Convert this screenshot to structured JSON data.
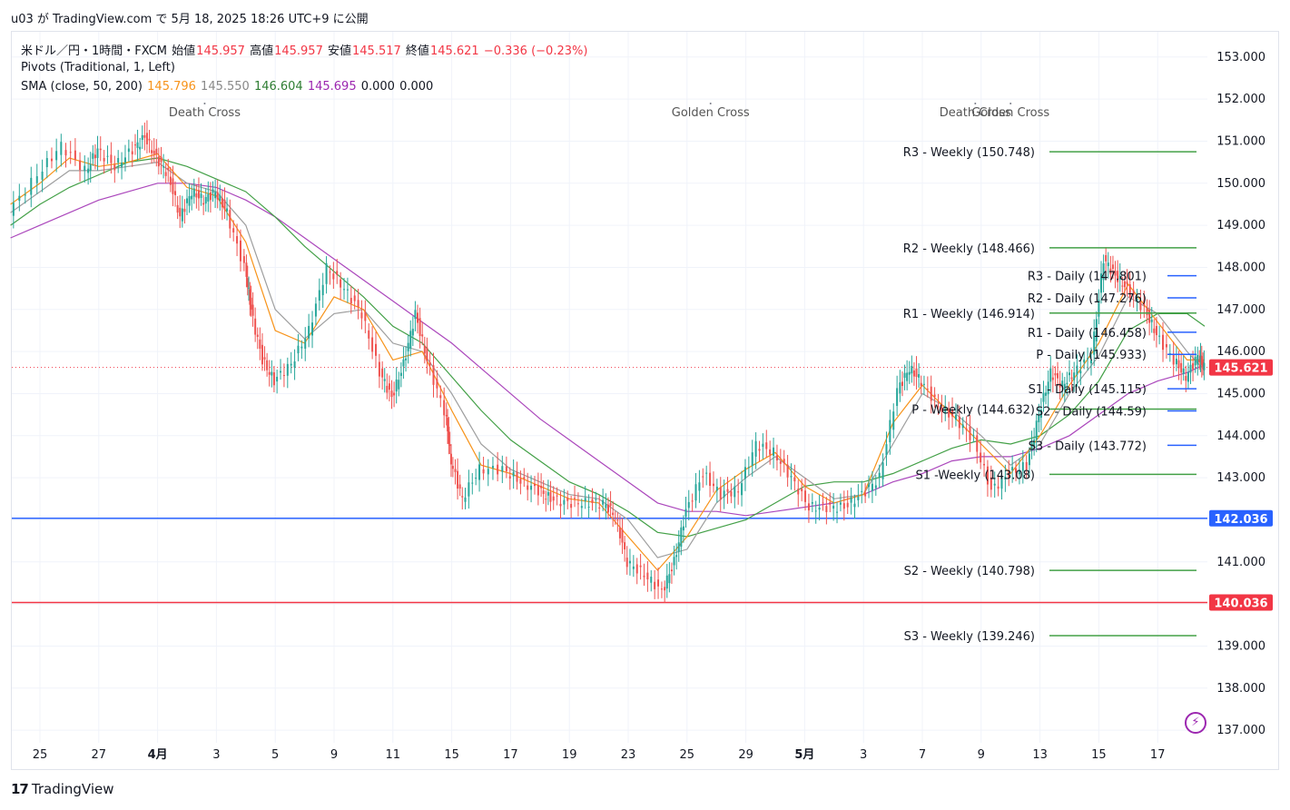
{
  "caption": "u03 が TradingView.com で 5月 18, 2025 18:26 UTC+9 に公開",
  "legend": {
    "symbol": "米ドル／円・1時間・FXCM",
    "open_label": "始値",
    "open": "145.957",
    "high_label": "高値",
    "high": "145.957",
    "low_label": "安値",
    "low": "145.517",
    "close_label": "終値",
    "close": "145.621",
    "change": "−0.336 (−0.23%)",
    "pivots": "Pivots (Traditional, 1, Left)",
    "sma_label": "SMA (close, 50, 200)",
    "sma_values": [
      "145.796",
      "145.550",
      "146.604",
      "145.695",
      "0.000",
      "0.000"
    ],
    "sma_colors": [
      "#f7931a",
      "#888888",
      "#2e7d32",
      "#9c27b0",
      "#131722",
      "#131722"
    ]
  },
  "footer": {
    "brand": "TradingView",
    "logo": "17"
  },
  "chart_data": {
    "type": "line",
    "title": "米ドル／円・1時間・FXCM",
    "x_ticks": [
      "25",
      "27",
      "4月",
      "3",
      "5",
      "9",
      "11",
      "15",
      "17",
      "19",
      "23",
      "25",
      "29",
      "5月",
      "3",
      "7",
      "9",
      "13",
      "15",
      "17"
    ],
    "y_ticks": [
      "153.000",
      "152.000",
      "151.000",
      "150.000",
      "149.000",
      "148.000",
      "147.000",
      "146.000",
      "145.000",
      "144.000",
      "143.000",
      "142.000",
      "141.000",
      "140.000",
      "139.000",
      "138.000",
      "137.000"
    ],
    "ylim": [
      136.7,
      153.6
    ],
    "x_range": [
      0,
      19.8
    ],
    "price": {
      "name": "USDJPY",
      "color": "#26a69a",
      "points": [
        [
          -0.5,
          149.3
        ],
        [
          0,
          150.2
        ],
        [
          0.4,
          150.9
        ],
        [
          0.8,
          150.3
        ],
        [
          1.0,
          150.8
        ],
        [
          1.3,
          150.4
        ],
        [
          1.6,
          150.8
        ],
        [
          1.8,
          151.1
        ],
        [
          2.0,
          150.6
        ],
        [
          2.2,
          150.2
        ],
        [
          2.4,
          149.2
        ],
        [
          2.6,
          149.8
        ],
        [
          2.8,
          149.6
        ],
        [
          3.0,
          149.8
        ],
        [
          3.2,
          149.3
        ],
        [
          3.5,
          148.0
        ],
        [
          3.6,
          147.0
        ],
        [
          3.8,
          145.8
        ],
        [
          4.0,
          145.3
        ],
        [
          4.3,
          145.7
        ],
        [
          4.6,
          146.5
        ],
        [
          4.9,
          148.0
        ],
        [
          5.2,
          147.5
        ],
        [
          5.5,
          146.9
        ],
        [
          5.8,
          145.5
        ],
        [
          6.0,
          144.9
        ],
        [
          6.2,
          145.7
        ],
        [
          6.4,
          146.9
        ],
        [
          6.6,
          145.8
        ],
        [
          6.9,
          144.6
        ],
        [
          7.0,
          143.4
        ],
        [
          7.2,
          142.5
        ],
        [
          7.5,
          143.2
        ],
        [
          7.9,
          143.2
        ],
        [
          8.2,
          142.9
        ],
        [
          8.5,
          142.7
        ],
        [
          8.7,
          142.5
        ],
        [
          9.0,
          142.4
        ],
        [
          9.3,
          142.4
        ],
        [
          9.6,
          142.4
        ],
        [
          9.8,
          142.1
        ],
        [
          10.0,
          141.0
        ],
        [
          10.3,
          140.7
        ],
        [
          10.6,
          140.3
        ],
        [
          10.8,
          141.0
        ],
        [
          11.0,
          142.2
        ],
        [
          11.3,
          143.1
        ],
        [
          11.6,
          142.6
        ],
        [
          11.9,
          142.7
        ],
        [
          12.2,
          143.8
        ],
        [
          12.5,
          143.6
        ],
        [
          12.8,
          143.0
        ],
        [
          13.1,
          142.3
        ],
        [
          13.4,
          142.3
        ],
        [
          13.7,
          142.3
        ],
        [
          14.0,
          142.6
        ],
        [
          14.3,
          143.0
        ],
        [
          14.6,
          145.1
        ],
        [
          14.8,
          145.6
        ],
        [
          15.0,
          145.3
        ],
        [
          15.3,
          144.7
        ],
        [
          15.6,
          144.4
        ],
        [
          15.9,
          143.9
        ],
        [
          16.2,
          142.7
        ],
        [
          16.5,
          143.1
        ],
        [
          16.8,
          143.3
        ],
        [
          17.0,
          144.5
        ],
        [
          17.2,
          145.5
        ],
        [
          17.4,
          145.2
        ],
        [
          17.6,
          145.5
        ],
        [
          17.9,
          145.9
        ],
        [
          18.1,
          148.2
        ],
        [
          18.3,
          147.8
        ],
        [
          18.5,
          147.5
        ],
        [
          18.8,
          147.0
        ],
        [
          19.0,
          146.4
        ],
        [
          19.3,
          145.8
        ],
        [
          19.5,
          145.4
        ],
        [
          19.7,
          145.9
        ],
        [
          19.8,
          145.62
        ]
      ]
    },
    "sma_short": {
      "name": "SMA 50",
      "color": "#f7931a",
      "points": [
        [
          -0.5,
          149.5
        ],
        [
          0,
          150.0
        ],
        [
          0.5,
          150.6
        ],
        [
          1,
          150.4
        ],
        [
          1.5,
          150.5
        ],
        [
          2,
          150.7
        ],
        [
          2.5,
          149.9
        ],
        [
          3,
          149.7
        ],
        [
          3.5,
          148.6
        ],
        [
          4,
          146.5
        ],
        [
          4.5,
          146.2
        ],
        [
          5,
          147.3
        ],
        [
          5.5,
          147.0
        ],
        [
          6,
          145.8
        ],
        [
          6.5,
          146.0
        ],
        [
          7,
          144.6
        ],
        [
          7.5,
          143.3
        ],
        [
          8,
          143.1
        ],
        [
          8.5,
          142.8
        ],
        [
          9,
          142.5
        ],
        [
          9.5,
          142.4
        ],
        [
          10,
          141.6
        ],
        [
          10.5,
          140.8
        ],
        [
          11,
          141.6
        ],
        [
          11.5,
          142.7
        ],
        [
          12,
          143.2
        ],
        [
          12.5,
          143.6
        ],
        [
          13,
          142.8
        ],
        [
          13.5,
          142.4
        ],
        [
          14,
          142.6
        ],
        [
          14.5,
          144.3
        ],
        [
          15,
          145.2
        ],
        [
          15.5,
          144.5
        ],
        [
          16,
          143.8
        ],
        [
          16.5,
          143.1
        ],
        [
          17,
          144.0
        ],
        [
          17.5,
          145.2
        ],
        [
          18,
          146.2
        ],
        [
          18.5,
          147.6
        ],
        [
          19,
          146.7
        ],
        [
          19.5,
          145.8
        ],
        [
          19.8,
          145.8
        ]
      ]
    },
    "sma_medium": {
      "name": "SMA 50 (grey)",
      "color": "#9e9e9e",
      "points": [
        [
          -0.5,
          149.3
        ],
        [
          0,
          149.8
        ],
        [
          0.5,
          150.3
        ],
        [
          1,
          150.3
        ],
        [
          1.5,
          150.4
        ],
        [
          2,
          150.5
        ],
        [
          2.5,
          150.0
        ],
        [
          3,
          149.8
        ],
        [
          3.5,
          149.0
        ],
        [
          4,
          147.0
        ],
        [
          4.5,
          146.3
        ],
        [
          5,
          146.9
        ],
        [
          5.5,
          147.0
        ],
        [
          6,
          146.2
        ],
        [
          6.5,
          146.0
        ],
        [
          7,
          145.0
        ],
        [
          7.5,
          143.8
        ],
        [
          8,
          143.2
        ],
        [
          8.5,
          142.9
        ],
        [
          9,
          142.6
        ],
        [
          9.5,
          142.5
        ],
        [
          10,
          142.0
        ],
        [
          10.5,
          141.1
        ],
        [
          11,
          141.3
        ],
        [
          11.5,
          142.4
        ],
        [
          12,
          143.0
        ],
        [
          12.5,
          143.5
        ],
        [
          13,
          143.0
        ],
        [
          13.5,
          142.5
        ],
        [
          14,
          142.6
        ],
        [
          14.5,
          143.8
        ],
        [
          15,
          145.0
        ],
        [
          15.5,
          144.6
        ],
        [
          16,
          144.0
        ],
        [
          16.5,
          143.3
        ],
        [
          17,
          143.8
        ],
        [
          17.5,
          145.0
        ],
        [
          18,
          145.9
        ],
        [
          18.5,
          147.3
        ],
        [
          19,
          146.9
        ],
        [
          19.5,
          146.0
        ],
        [
          19.8,
          145.55
        ]
      ]
    },
    "sma_long_green": {
      "name": "SMA 200",
      "color": "#43a047",
      "points": [
        [
          -0.5,
          149.0
        ],
        [
          0,
          149.5
        ],
        [
          0.5,
          149.9
        ],
        [
          1,
          150.2
        ],
        [
          1.5,
          150.5
        ],
        [
          2,
          150.6
        ],
        [
          2.5,
          150.4
        ],
        [
          3,
          150.1
        ],
        [
          3.5,
          149.8
        ],
        [
          4,
          149.2
        ],
        [
          4.5,
          148.5
        ],
        [
          5,
          147.9
        ],
        [
          5.5,
          147.3
        ],
        [
          6,
          146.6
        ],
        [
          6.5,
          146.2
        ],
        [
          7,
          145.4
        ],
        [
          7.5,
          144.6
        ],
        [
          8,
          143.9
        ],
        [
          8.5,
          143.4
        ],
        [
          9,
          142.9
        ],
        [
          9.5,
          142.6
        ],
        [
          10,
          142.2
        ],
        [
          10.5,
          141.7
        ],
        [
          11,
          141.6
        ],
        [
          11.5,
          141.8
        ],
        [
          12,
          142.0
        ],
        [
          12.5,
          142.4
        ],
        [
          13,
          142.8
        ],
        [
          13.5,
          142.9
        ],
        [
          14,
          142.9
        ],
        [
          14.5,
          143.1
        ],
        [
          15,
          143.4
        ],
        [
          15.5,
          143.7
        ],
        [
          16,
          143.9
        ],
        [
          16.5,
          143.8
        ],
        [
          17,
          144.0
        ],
        [
          17.5,
          144.5
        ],
        [
          18,
          145.3
        ],
        [
          18.5,
          146.5
        ],
        [
          19,
          146.9
        ],
        [
          19.5,
          146.9
        ],
        [
          19.8,
          146.6
        ]
      ]
    },
    "sma_long_purple": {
      "name": "SMA 200 (purple)",
      "color": "#ab47bc",
      "points": [
        [
          -0.5,
          148.7
        ],
        [
          0,
          149.0
        ],
        [
          0.5,
          149.3
        ],
        [
          1,
          149.6
        ],
        [
          1.5,
          149.8
        ],
        [
          2,
          150.0
        ],
        [
          2.5,
          150.0
        ],
        [
          3,
          149.9
        ],
        [
          3.5,
          149.6
        ],
        [
          4,
          149.2
        ],
        [
          4.5,
          148.7
        ],
        [
          5,
          148.2
        ],
        [
          5.5,
          147.7
        ],
        [
          6,
          147.2
        ],
        [
          6.5,
          146.7
        ],
        [
          7,
          146.2
        ],
        [
          7.5,
          145.6
        ],
        [
          8,
          145.0
        ],
        [
          8.5,
          144.4
        ],
        [
          9,
          143.9
        ],
        [
          9.5,
          143.4
        ],
        [
          10,
          142.9
        ],
        [
          10.5,
          142.4
        ],
        [
          11,
          142.2
        ],
        [
          11.5,
          142.2
        ],
        [
          12,
          142.1
        ],
        [
          12.5,
          142.2
        ],
        [
          13,
          142.3
        ],
        [
          13.5,
          142.4
        ],
        [
          14,
          142.6
        ],
        [
          14.5,
          142.9
        ],
        [
          15,
          143.1
        ],
        [
          15.5,
          143.4
        ],
        [
          16,
          143.5
        ],
        [
          16.5,
          143.5
        ],
        [
          17,
          143.7
        ],
        [
          17.5,
          144.0
        ],
        [
          18,
          144.5
        ],
        [
          18.5,
          145.0
        ],
        [
          19,
          145.3
        ],
        [
          19.5,
          145.5
        ],
        [
          19.8,
          145.69
        ]
      ]
    },
    "horizontal_lines": [
      {
        "label": "142.036",
        "value": 142.036,
        "color": "#2962ff"
      },
      {
        "label": "140.036",
        "value": 140.036,
        "color": "#f23645"
      }
    ],
    "last_price": {
      "label": "145.621",
      "value": 145.621,
      "color": "#f23645"
    },
    "weekly_pivots": [
      {
        "label": "R3 - Weekly (150.748)",
        "value": 150.748
      },
      {
        "label": "R2 - Weekly (148.466)",
        "value": 148.466
      },
      {
        "label": "R1 - Weekly (146.914)",
        "value": 146.914
      },
      {
        "label": "P - Weekly (144.632)",
        "value": 144.632
      },
      {
        "label": "S1 -Weekly (143.08)",
        "value": 143.08
      },
      {
        "label": "S2 - Weekly (140.798)",
        "value": 140.798
      },
      {
        "label": "S3 - Weekly (139.246)",
        "value": 139.246
      }
    ],
    "daily_pivots": [
      {
        "label": "R3 - Daily (147.801)",
        "value": 147.801
      },
      {
        "label": "R2 - Daily (147.276)",
        "value": 147.276
      },
      {
        "label": "R1 - Daily (146.458)",
        "value": 146.458
      },
      {
        "label": "P - Daily (145.933)",
        "value": 145.933
      },
      {
        "label": "S1 - Daily (145.115)",
        "value": 145.115
      },
      {
        "label": "S2 - Daily (144.59)",
        "value": 144.59
      },
      {
        "label": "S3 - Daily (143.772)",
        "value": 143.772
      }
    ],
    "pivot_colors": {
      "weekly": "#43a047",
      "daily": "#2962ff"
    },
    "events": [
      {
        "label": "Death Cross",
        "x": 2.8
      },
      {
        "label": "Golden Cross",
        "x": 11.4
      },
      {
        "label": "Death Cross",
        "x": 15.9
      },
      {
        "label": "Golden Cross",
        "x": 16.5
      }
    ],
    "grid": true
  }
}
